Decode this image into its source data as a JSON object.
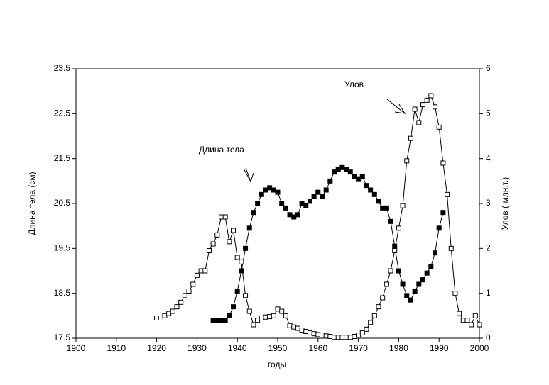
{
  "chart_data": {
    "type": "line",
    "x_label": "годы",
    "y_label": "Длина тела (см)",
    "y2_label": "Улов ( млн.т.)",
    "xlim": [
      1900,
      2000
    ],
    "xticks": [
      1900,
      1910,
      1920,
      1930,
      1940,
      1950,
      1960,
      1970,
      1980,
      1990,
      2000
    ],
    "ylim": [
      17.5,
      23.5
    ],
    "yticks": [
      17.5,
      18.5,
      19.5,
      20.5,
      21.5,
      22.5,
      23.5
    ],
    "y2lim": [
      0,
      6
    ],
    "y2ticks": [
      0,
      1,
      2,
      3,
      4,
      5,
      6
    ],
    "series": [
      {
        "name": "Длина тела",
        "color": "#000000",
        "marker": "filled",
        "x": [
          1934,
          1935,
          1936,
          1937,
          1938,
          1939,
          1940,
          1941,
          1942,
          1943,
          1944,
          1945,
          1946,
          1947,
          1948,
          1949,
          1950,
          1951,
          1952,
          1953,
          1954,
          1955,
          1956,
          1957,
          1958,
          1959,
          1960,
          1961,
          1962,
          1963,
          1964,
          1965,
          1966,
          1967,
          1968,
          1969,
          1970,
          1971,
          1972,
          1973,
          1974,
          1975,
          1976,
          1977,
          1978,
          1979,
          1980,
          1981,
          1982,
          1983,
          1984,
          1985,
          1986,
          1987,
          1988,
          1989,
          1990,
          1991
        ],
        "values": [
          17.9,
          17.9,
          17.9,
          17.9,
          18.0,
          18.2,
          18.55,
          19.0,
          19.5,
          19.95,
          20.3,
          20.5,
          20.7,
          20.8,
          20.85,
          20.8,
          20.75,
          20.5,
          20.4,
          20.25,
          20.2,
          20.25,
          20.5,
          20.45,
          20.55,
          20.65,
          20.75,
          20.65,
          20.8,
          21.0,
          21.2,
          21.25,
          21.3,
          21.25,
          21.2,
          21.1,
          21.05,
          21.1,
          20.9,
          20.8,
          20.7,
          20.55,
          20.4,
          20.4,
          20.1,
          19.55,
          19.0,
          18.7,
          18.45,
          18.35,
          18.55,
          18.7,
          18.8,
          18.95,
          19.1,
          19.4,
          19.95,
          20.3
        ]
      },
      {
        "name": "Улов",
        "color": "#000000",
        "marker": "open",
        "axis": "y2",
        "x": [
          1920,
          1921,
          1922,
          1923,
          1924,
          1925,
          1926,
          1927,
          1928,
          1929,
          1930,
          1931,
          1932,
          1933,
          1934,
          1935,
          1936,
          1937,
          1938,
          1939,
          1940,
          1941,
          1942,
          1943,
          1944,
          1945,
          1946,
          1947,
          1948,
          1949,
          1950,
          1951,
          1952,
          1953,
          1954,
          1955,
          1956,
          1957,
          1958,
          1959,
          1960,
          1961,
          1962,
          1963,
          1964,
          1965,
          1966,
          1967,
          1968,
          1969,
          1970,
          1971,
          1972,
          1973,
          1974,
          1975,
          1976,
          1977,
          1978,
          1979,
          1980,
          1981,
          1982,
          1983,
          1984,
          1985,
          1986,
          1987,
          1988,
          1989,
          1990,
          1991,
          1992,
          1993,
          1994,
          1995,
          1996,
          1997,
          1998,
          1999,
          2000
        ],
        "values": [
          0.45,
          0.45,
          0.5,
          0.55,
          0.6,
          0.7,
          0.8,
          0.95,
          1.05,
          1.2,
          1.4,
          1.5,
          1.5,
          1.95,
          2.1,
          2.3,
          2.7,
          2.7,
          2.15,
          2.4,
          1.8,
          1.7,
          0.95,
          0.6,
          0.3,
          0.4,
          0.45,
          0.47,
          0.48,
          0.5,
          0.65,
          0.6,
          0.5,
          0.28,
          0.25,
          0.22,
          0.18,
          0.15,
          0.12,
          0.1,
          0.08,
          0.07,
          0.05,
          0.04,
          0.02,
          0.02,
          0.02,
          0.02,
          0.02,
          0.04,
          0.07,
          0.12,
          0.2,
          0.35,
          0.5,
          0.7,
          0.9,
          1.2,
          1.5,
          1.95,
          2.45,
          2.95,
          3.95,
          4.45,
          5.1,
          4.8,
          5.2,
          5.3,
          5.4,
          5.15,
          4.7,
          3.9,
          3.2,
          2.0,
          1.0,
          0.55,
          0.4,
          0.4,
          0.3,
          0.5,
          0.3
        ]
      }
    ]
  }
}
